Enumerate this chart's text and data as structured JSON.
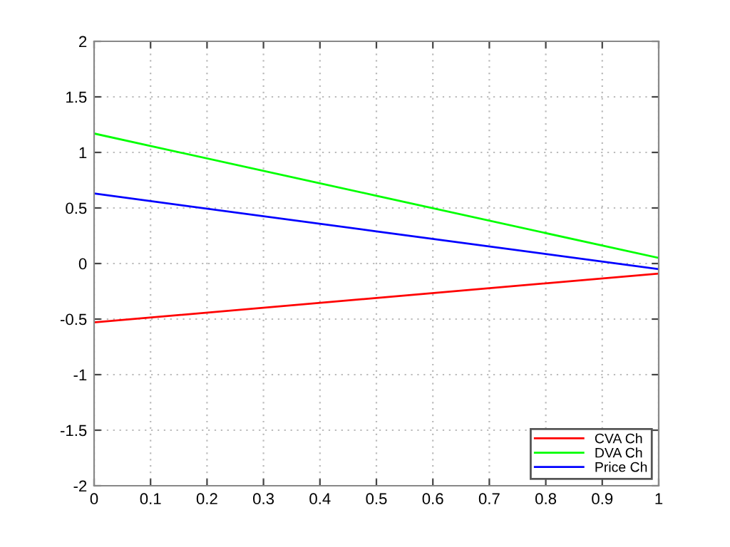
{
  "chart_data": {
    "type": "line",
    "x": [
      0,
      0.5,
      1
    ],
    "series": [
      {
        "name": "CVA Ch",
        "color": "#ff0000",
        "values": [
          -0.53,
          -0.31,
          -0.09
        ]
      },
      {
        "name": "DVA Ch",
        "color": "#00ff00",
        "values": [
          1.17,
          0.61,
          0.05
        ]
      },
      {
        "name": "Price Ch",
        "color": "#0000ff",
        "values": [
          0.63,
          0.29,
          -0.05
        ]
      }
    ],
    "xlim": [
      0,
      1
    ],
    "xticks": [
      0,
      0.1,
      0.2,
      0.3,
      0.4,
      0.5,
      0.6,
      0.7,
      0.8,
      0.9,
      1
    ],
    "ylim": [
      -2,
      2
    ],
    "yticks": [
      -2,
      -1.5,
      -1,
      -0.5,
      0,
      0.5,
      1,
      1.5,
      2
    ],
    "grid": true,
    "legend": "bottom right"
  }
}
